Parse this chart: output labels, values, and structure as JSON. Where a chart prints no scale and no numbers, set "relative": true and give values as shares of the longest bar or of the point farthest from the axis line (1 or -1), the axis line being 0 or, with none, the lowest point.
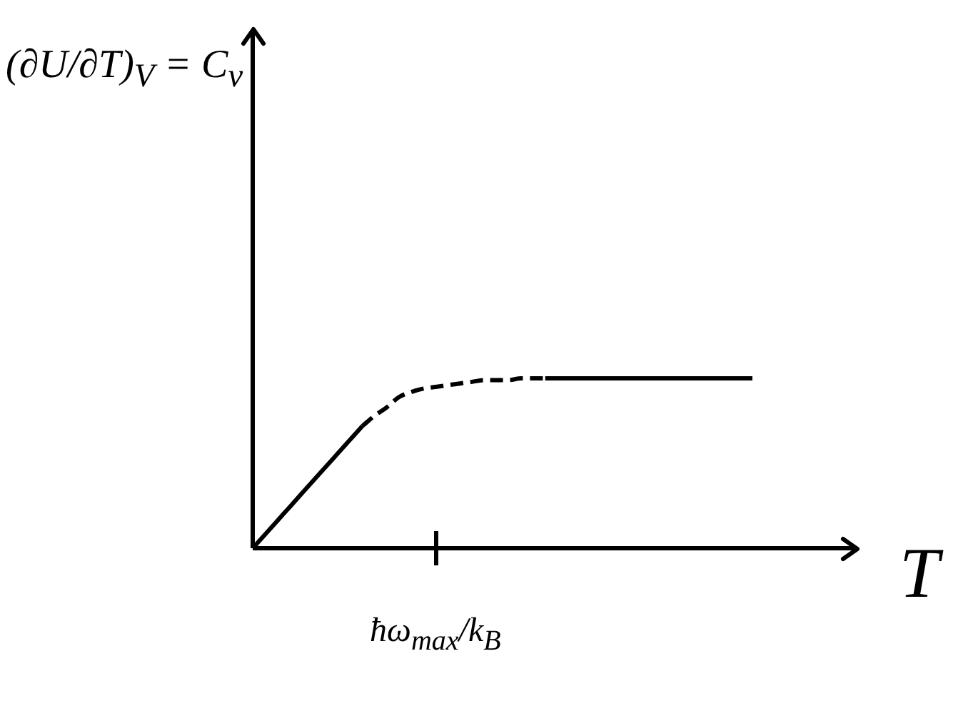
{
  "chart_data": {
    "type": "line",
    "xlabel": "T",
    "relative": true,
    "marker": "none",
    "annotations": [
      "(∂U/∂T)$_{V}$ = C$_{v}$",
      "ħω$_{max}$/k$_{B}$"
    ],
    "categories": [
      null,
      null,
      null,
      null,
      null,
      null,
      null,
      null,
      null,
      null,
      null,
      null,
      null,
      null,
      null,
      null,
      null,
      null,
      null,
      null,
      null,
      null,
      null,
      null,
      null,
      null,
      null,
      null,
      null,
      null,
      null,
      null,
      null,
      null,
      null,
      null,
      null,
      null,
      null,
      null,
      null,
      null
    ],
    "series": [
      {
        "color": "#000000",
        "line_style": "solid",
        "values": [
          0,
          0.08,
          0.16,
          0.24,
          0.32,
          0.4,
          0.48,
          0.56,
          0.64,
          0.72,
          null,
          null,
          null,
          null,
          null,
          null,
          null,
          null,
          null,
          null,
          null,
          null,
          null,
          null,
          null,
          null,
          null,
          null,
          null,
          null,
          null,
          null,
          null,
          null,
          null,
          null,
          null,
          null,
          null,
          null,
          null,
          null
        ]
      },
      {
        "color": "#000000",
        "line_style": "dashed",
        "values": [
          null,
          null,
          null,
          null,
          null,
          null,
          null,
          null,
          null,
          0.72,
          0.78,
          0.83,
          0.89,
          0.92,
          0.94,
          0.95,
          0.96,
          0.97,
          0.98,
          0.99,
          0.99,
          0.99,
          1,
          1,
          1,
          null,
          null,
          null,
          null,
          null,
          null,
          null,
          null,
          null,
          null,
          null,
          null,
          null,
          null,
          null,
          null,
          null
        ]
      },
      {
        "color": "#000000",
        "line_style": "solid",
        "values": [
          null,
          null,
          null,
          null,
          null,
          null,
          null,
          null,
          null,
          null,
          null,
          null,
          null,
          null,
          null,
          null,
          null,
          null,
          null,
          null,
          null,
          null,
          null,
          null,
          1,
          1,
          1,
          1,
          1,
          1,
          1,
          1,
          1,
          1,
          1,
          1,
          1,
          1,
          1,
          1,
          1,
          1
        ]
      }
    ]
  }
}
